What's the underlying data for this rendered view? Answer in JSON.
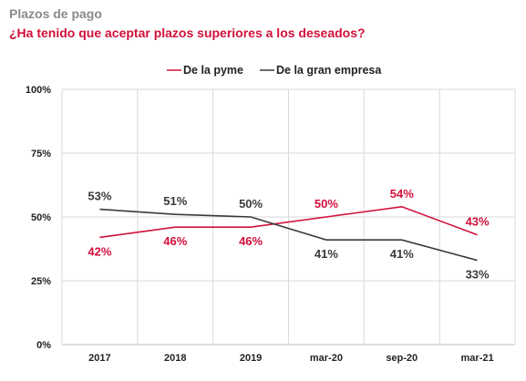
{
  "header": {
    "title": "Plazos de pago",
    "subtitle": "¿Ha tenido que aceptar plazos superiores a los deseados?"
  },
  "colors": {
    "pyme": "#d0103a",
    "gran_empresa": "#3a3a3a",
    "grid": "#d9d9d9",
    "axis": "#bfbfbf"
  },
  "chart_data": {
    "type": "line",
    "categories": [
      "2017",
      "2018",
      "2019",
      "mar-20",
      "sep-20",
      "mar-21"
    ],
    "series": [
      {
        "name": "De la pyme",
        "values": [
          42,
          46,
          46,
          50,
          54,
          43
        ],
        "labels": [
          "42%",
          "46%",
          "46%",
          "50%",
          "54%",
          "43%"
        ]
      },
      {
        "name": "De la gran empresa",
        "values": [
          53,
          51,
          50,
          41,
          41,
          33
        ],
        "labels": [
          "53%",
          "51%",
          "50%",
          "41%",
          "41%",
          "33%"
        ]
      }
    ],
    "yticks": [
      "0%",
      "25%",
      "50%",
      "75%",
      "100%"
    ],
    "ylim": [
      0,
      100
    ],
    "legend_position": "top-center",
    "grid": true
  }
}
